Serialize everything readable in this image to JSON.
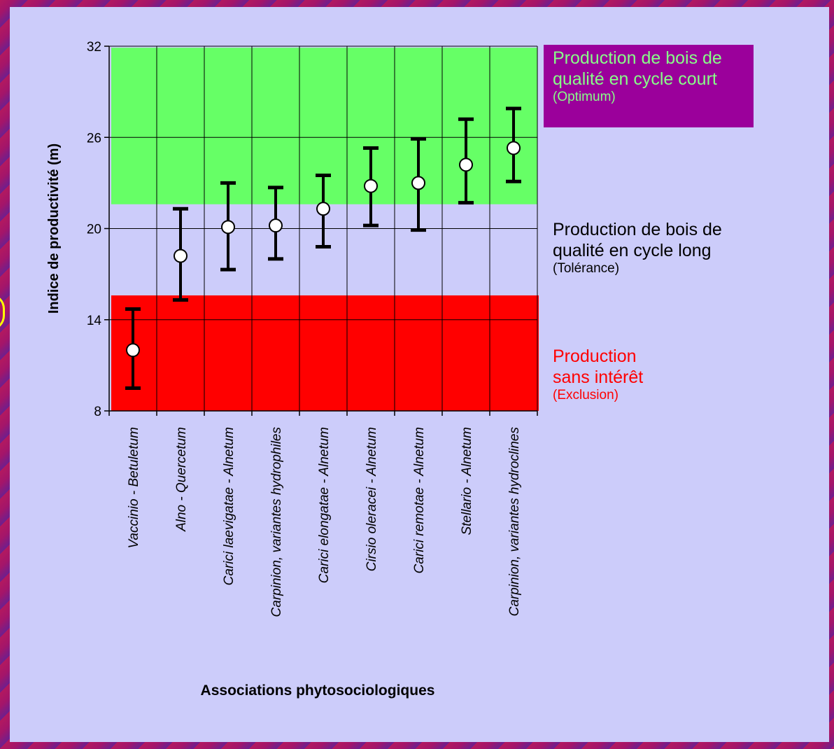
{
  "chart_data": {
    "type": "errorbar",
    "title": "",
    "xlabel": "Associations phytosociologiques",
    "ylabel": "Indice de productivité (m)",
    "ylim": [
      8,
      32
    ],
    "yticks": [
      8,
      14,
      20,
      26,
      32
    ],
    "grid": true,
    "categories": [
      "Vaccinio - Betuletum",
      "Alno - Quercetum",
      "Carici laevigatae - Alnetum",
      "Carpinion, variantes hydrophiles",
      "Carici elongatae - Alnetum",
      "Cirsio oleracei - Alnetum",
      "Carici remotae - Alnetum",
      "Stellario - Alnetum",
      "Carpinion, variantes hydroclines"
    ],
    "series": [
      {
        "mean": [
          12.0,
          18.2,
          20.1,
          20.2,
          21.3,
          22.8,
          23.0,
          24.2,
          25.3
        ],
        "lower": [
          9.5,
          15.3,
          17.3,
          18.0,
          18.8,
          20.2,
          19.9,
          21.7,
          23.1
        ],
        "upper": [
          14.7,
          21.3,
          23.0,
          22.7,
          23.5,
          25.3,
          25.9,
          27.2,
          27.9
        ]
      }
    ],
    "zones": [
      {
        "id": "optimum",
        "from": 21.6,
        "to": 31.9,
        "color": "#66ff66",
        "label": "Production de bois de qualité en cycle court",
        "sublabel": "(Optimum)",
        "label_bg": "#9b009b",
        "label_color": "#88ff88"
      },
      {
        "id": "tolerance",
        "from": 15.6,
        "to": 21.6,
        "color": "#ccccfa",
        "label": "Production de bois de qualité en cycle long",
        "sublabel": "(Tolérance)",
        "label_color": "#000000"
      },
      {
        "id": "exclusion",
        "from": 8,
        "to": 15.6,
        "color": "#ff0000",
        "label": "Production sans intérêt",
        "sublabel": "(Exclusion)",
        "label_color": "#ff0000"
      }
    ]
  },
  "labels": {
    "optimum_line1": "Production de bois de",
    "optimum_line2": "qualité en cycle court",
    "optimum_sub": "(Optimum)",
    "tolerance_line1": "Production de bois de",
    "tolerance_line2": "qualité en cycle long",
    "tolerance_sub": "(Tolérance)",
    "exclusion_line1": "Production",
    "exclusion_line2": "sans intérêt",
    "exclusion_sub": "(Exclusion)"
  }
}
